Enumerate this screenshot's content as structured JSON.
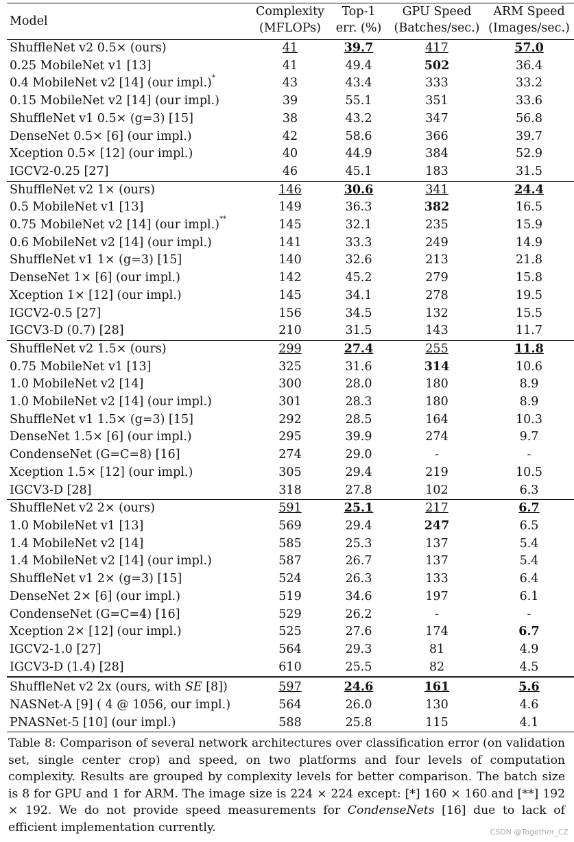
{
  "header": {
    "model": "Model",
    "complexity": [
      "Complexity",
      "(MFLOPs)"
    ],
    "top1": [
      "Top-1",
      "err. (%)"
    ],
    "gpu": [
      "GPU Speed",
      "(Batches/sec.)"
    ],
    "arm": [
      "ARM Speed",
      "(Images/sec.)"
    ]
  },
  "groups": [
    {
      "rows": [
        {
          "m": "ShuffleNet v2 0.5× (ours)",
          "c": "41",
          "e": "39.7",
          "g": "417",
          "a": "57.0",
          "s": {
            "c": "u",
            "e": "bu",
            "g": "u",
            "a": "bu"
          }
        },
        {
          "m": "0.25 MobileNet v1 [13]",
          "c": "41",
          "e": "49.4",
          "g": "502",
          "a": "36.4",
          "s": {
            "g": "b"
          }
        },
        {
          "m": "0.4 MobileNet v2 [14] (our impl.)",
          "sup": "*",
          "c": "43",
          "e": "43.4",
          "g": "333",
          "a": "33.2"
        },
        {
          "m": "0.15 MobileNet v2 [14] (our impl.)",
          "c": "39",
          "e": "55.1",
          "g": "351",
          "a": "33.6"
        },
        {
          "m": "ShuffleNet v1 0.5× (g=3) [15]",
          "c": "38",
          "e": "43.2",
          "g": "347",
          "a": "56.8"
        },
        {
          "m": "DenseNet 0.5× [6] (our impl.)",
          "c": "42",
          "e": "58.6",
          "g": "366",
          "a": "39.7"
        },
        {
          "m": "Xception 0.5× [12] (our impl.)",
          "c": "40",
          "e": "44.9",
          "g": "384",
          "a": "52.9"
        },
        {
          "m": "IGCV2-0.25 [27]",
          "c": "46",
          "e": "45.1",
          "g": "183",
          "a": "31.5"
        }
      ]
    },
    {
      "rows": [
        {
          "m": "ShuffleNet v2 1× (ours)",
          "c": "146",
          "e": "30.6",
          "g": "341",
          "a": "24.4",
          "s": {
            "c": "u",
            "e": "bu",
            "g": "u",
            "a": "bu"
          }
        },
        {
          "m": "0.5 MobileNet v1 [13]",
          "c": "149",
          "e": "36.3",
          "g": "382",
          "a": "16.5",
          "s": {
            "g": "b"
          }
        },
        {
          "m": "0.75 MobileNet v2 [14] (our impl.)",
          "sup": "**",
          "c": "145",
          "e": "32.1",
          "g": "235",
          "a": "15.9"
        },
        {
          "m": "0.6 MobileNet v2 [14] (our impl.)",
          "c": "141",
          "e": "33.3",
          "g": "249",
          "a": "14.9"
        },
        {
          "m": "ShuffleNet v1 1× (g=3) [15]",
          "c": "140",
          "e": "32.6",
          "g": "213",
          "a": "21.8"
        },
        {
          "m": "DenseNet 1× [6] (our impl.)",
          "c": "142",
          "e": "45.2",
          "g": "279",
          "a": "15.8"
        },
        {
          "m": "Xception 1× [12] (our impl.)",
          "c": "145",
          "e": "34.1",
          "g": "278",
          "a": "19.5"
        },
        {
          "m": "IGCV2-0.5 [27]",
          "c": "156",
          "e": "34.5",
          "g": "132",
          "a": "15.5"
        },
        {
          "m": "IGCV3-D (0.7) [28]",
          "c": "210",
          "e": "31.5",
          "g": "143",
          "a": "11.7"
        }
      ]
    },
    {
      "rows": [
        {
          "m": "ShuffleNet v2 1.5× (ours)",
          "c": "299",
          "e": "27.4",
          "g": "255",
          "a": "11.8",
          "s": {
            "c": "u",
            "e": "bu",
            "g": "u",
            "a": "bu"
          }
        },
        {
          "m": "0.75 MobileNet v1 [13]",
          "c": "325",
          "e": "31.6",
          "g": "314",
          "a": "10.6",
          "s": {
            "g": "b"
          }
        },
        {
          "m": "1.0 MobileNet v2 [14]",
          "c": "300",
          "e": "28.0",
          "g": "180",
          "a": "8.9"
        },
        {
          "m": "1.0 MobileNet v2 [14] (our impl.)",
          "c": "301",
          "e": "28.3",
          "g": "180",
          "a": "8.9"
        },
        {
          "m": "ShuffleNet v1 1.5× (g=3) [15]",
          "c": "292",
          "e": "28.5",
          "g": "164",
          "a": "10.3"
        },
        {
          "m": "DenseNet 1.5× [6] (our impl.)",
          "c": "295",
          "e": "39.9",
          "g": "274",
          "a": "9.7"
        },
        {
          "m": "CondenseNet (G=C=8) [16]",
          "c": "274",
          "e": "29.0",
          "g": "-",
          "a": "-"
        },
        {
          "m": "Xception 1.5× [12] (our impl.)",
          "c": "305",
          "e": "29.4",
          "g": "219",
          "a": "10.5"
        },
        {
          "m": "IGCV3-D [28]",
          "c": "318",
          "e": "27.8",
          "g": "102",
          "a": "6.3"
        }
      ]
    },
    {
      "rows": [
        {
          "m": "ShuffleNet v2 2× (ours)",
          "c": "591",
          "e": "25.1",
          "g": "217",
          "a": "6.7",
          "s": {
            "c": "u",
            "e": "bu",
            "g": "u",
            "a": "bu"
          }
        },
        {
          "m": "1.0 MobileNet v1 [13]",
          "c": "569",
          "e": "29.4",
          "g": "247",
          "a": "6.5",
          "s": {
            "g": "b"
          }
        },
        {
          "m": "1.4 MobileNet v2 [14]",
          "c": "585",
          "e": "25.3",
          "g": "137",
          "a": "5.4"
        },
        {
          "m": "1.4 MobileNet v2 [14] (our impl.)",
          "c": "587",
          "e": "26.7",
          "g": "137",
          "a": "5.4"
        },
        {
          "m": "ShuffleNet v1 2× (g=3) [15]",
          "c": "524",
          "e": "26.3",
          "g": "133",
          "a": "6.4"
        },
        {
          "m": "DenseNet 2× [6] (our impl.)",
          "c": "519",
          "e": "34.6",
          "g": "197",
          "a": "6.1"
        },
        {
          "m": "CondenseNet (G=C=4) [16]",
          "c": "529",
          "e": "26.2",
          "g": "-",
          "a": "-"
        },
        {
          "m": "Xception 2× [12] (our impl.)",
          "c": "525",
          "e": "27.6",
          "g": "174",
          "a": "6.7",
          "s": {
            "a": "b"
          }
        },
        {
          "m": "IGCV2-1.0 [27]",
          "c": "564",
          "e": "29.3",
          "g": "81",
          "a": "4.9"
        },
        {
          "m": "IGCV3-D (1.4) [28]",
          "c": "610",
          "e": "25.5",
          "g": "82",
          "a": "4.5"
        }
      ]
    },
    {
      "double": true,
      "rows": [
        {
          "m": "ShuffleNet v2 2x (ours, with ",
          "mi": "SE",
          "m2": " [8])",
          "c": "597",
          "e": "24.6",
          "g": "161",
          "a": "5.6",
          "s": {
            "c": "u",
            "e": "bu",
            "g": "bu",
            "a": "bu"
          }
        },
        {
          "m": "NASNet-A [9] ( 4 @ 1056, our impl.)",
          "c": "564",
          "e": "26.0",
          "g": "130",
          "a": "4.6"
        },
        {
          "m": "PNASNet-5 [10] (our impl.)",
          "c": "588",
          "e": "25.8",
          "g": "115",
          "a": "4.1"
        }
      ]
    }
  ],
  "caption": {
    "part1": "Table 8: Comparison of several network architectures over classification error (on validation set, single center crop) and speed, on two platforms and four levels of computation complexity. Results are grouped by complexity levels for better comparison. The batch size is 8 for GPU and 1 for ARM. The image size is 224 × 224 except: [*] 160 × 160 and [**] 192 × 192. We do not provide speed measurements for ",
    "italic": "CondenseNets",
    "part2": " [16] due to lack of efficient implementation currently."
  },
  "watermark": "CSDN @Together_CZ"
}
